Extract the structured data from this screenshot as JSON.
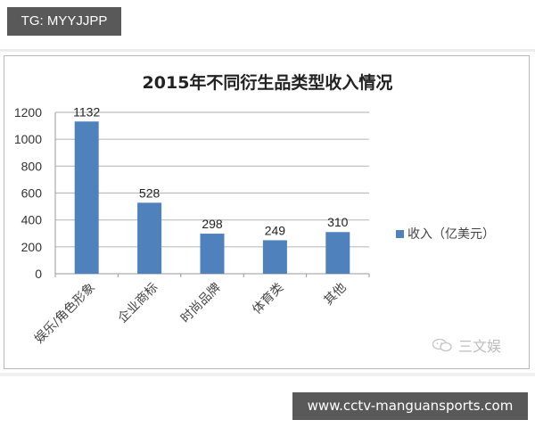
{
  "badges": {
    "top": "TG: MYYJJPP",
    "bottom": "www.cctv-manguansports.com"
  },
  "legend": {
    "label": "收入（亿美元）",
    "color": "#4f81bd"
  },
  "watermark": {
    "text": "三文娱",
    "icon": "wechat-logo-icon"
  },
  "chart_data": {
    "type": "bar",
    "title": "2015年不同衍生品类型收入情况",
    "categories": [
      "娱乐/角色形象",
      "企业商标",
      "时尚品牌",
      "体育类",
      "其他"
    ],
    "series": [
      {
        "name": "收入（亿美元）",
        "values": [
          1132,
          528,
          298,
          249,
          310
        ],
        "color": "#4f81bd"
      }
    ],
    "data_labels": [
      "1132",
      "528",
      "298",
      "249",
      "310"
    ],
    "xlabel": "",
    "ylabel": "",
    "ylim": [
      0,
      1200
    ],
    "yticks": [
      0,
      200,
      400,
      600,
      800,
      1000,
      1200
    ],
    "ytick_labels": [
      "0",
      "200",
      "400",
      "600",
      "800",
      "1000",
      "1200"
    ],
    "grid": true,
    "legend_position": "right",
    "xtick_rotation": -45
  }
}
